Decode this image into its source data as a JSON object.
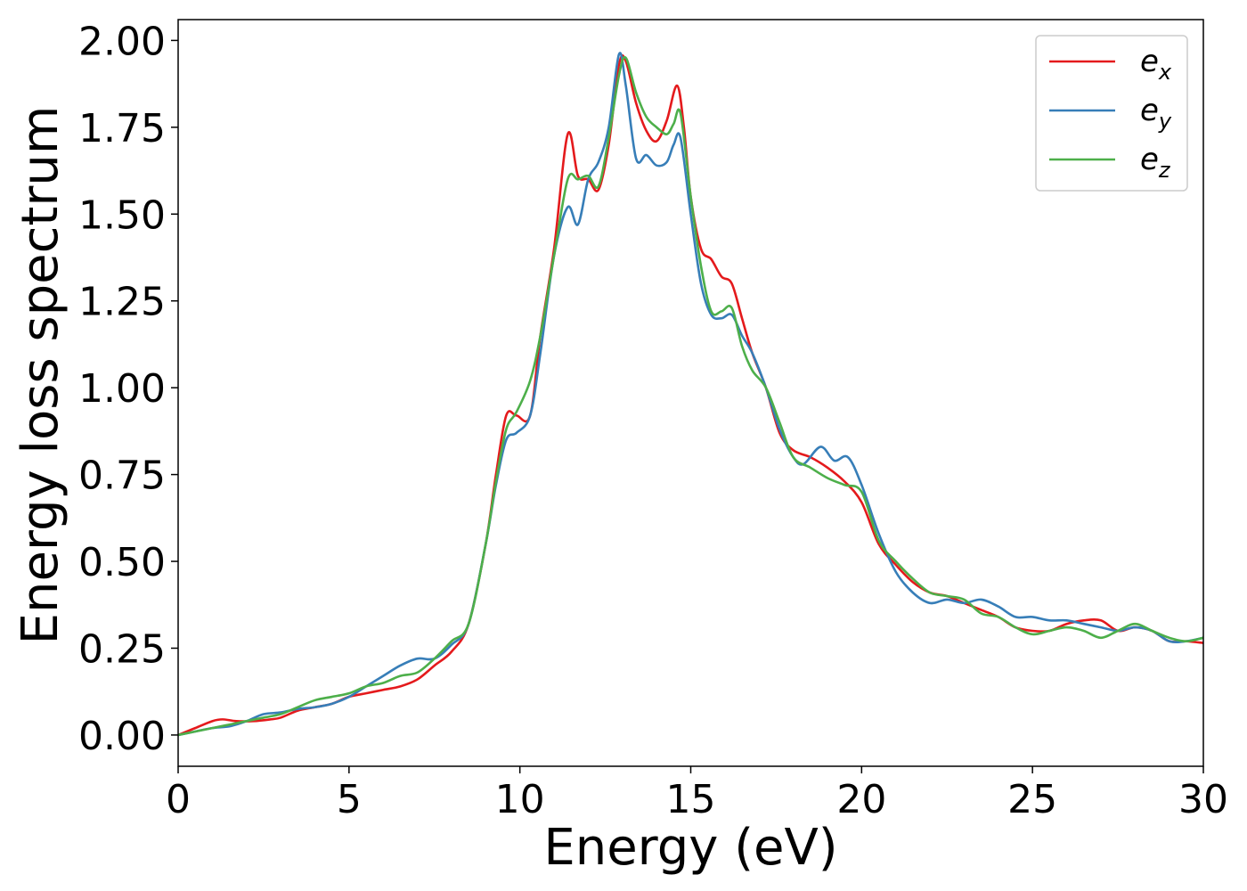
{
  "chart_data": {
    "type": "line",
    "title": "",
    "xlabel": "Energy (eV)",
    "ylabel": "Energy loss spectrum",
    "xlim": [
      0,
      30
    ],
    "ylim": [
      -0.09,
      2.06
    ],
    "xticks": [
      0,
      5,
      10,
      15,
      20,
      25,
      30
    ],
    "xtick_labels": [
      "0",
      "5",
      "10",
      "15",
      "20",
      "25",
      "30"
    ],
    "yticks": [
      0.0,
      0.25,
      0.5,
      0.75,
      1.0,
      1.25,
      1.5,
      1.75,
      2.0
    ],
    "ytick_labels": [
      "0.00",
      "0.25",
      "0.50",
      "0.75",
      "1.00",
      "1.25",
      "1.50",
      "1.75",
      "2.00"
    ],
    "grid": false,
    "legend_position": "top-right",
    "series": [
      {
        "name": "e_x",
        "legend_base": "e",
        "legend_sub": "x",
        "color": "#e41a1c",
        "x": [
          0,
          0.5,
          1.0,
          1.3,
          1.7,
          2.2,
          2.7,
          3.0,
          3.5,
          4.0,
          4.5,
          5.0,
          5.5,
          6.0,
          6.5,
          7.0,
          7.5,
          8.0,
          8.5,
          9.0,
          9.3,
          9.6,
          9.9,
          10.3,
          10.6,
          11.0,
          11.4,
          11.7,
          12.0,
          12.3,
          12.6,
          12.9,
          13.1,
          13.4,
          13.7,
          14.0,
          14.3,
          14.6,
          14.8,
          15.0,
          15.3,
          15.6,
          15.9,
          16.2,
          16.5,
          16.8,
          17.2,
          17.6,
          18.0,
          18.5,
          19.0,
          19.5,
          20.0,
          20.5,
          21.0,
          21.5,
          22.0,
          22.5,
          23.0,
          23.5,
          24.0,
          24.5,
          25.0,
          25.5,
          26.0,
          26.5,
          27.0,
          27.5,
          28.0,
          28.5,
          29.0,
          29.5,
          30.0
        ],
        "y": [
          0.0,
          0.02,
          0.04,
          0.045,
          0.04,
          0.04,
          0.045,
          0.05,
          0.07,
          0.08,
          0.09,
          0.11,
          0.12,
          0.13,
          0.14,
          0.16,
          0.2,
          0.24,
          0.32,
          0.55,
          0.75,
          0.92,
          0.92,
          0.92,
          1.15,
          1.4,
          1.73,
          1.61,
          1.6,
          1.57,
          1.7,
          1.93,
          1.94,
          1.82,
          1.74,
          1.71,
          1.77,
          1.87,
          1.75,
          1.55,
          1.4,
          1.37,
          1.32,
          1.3,
          1.2,
          1.1,
          1.0,
          0.87,
          0.82,
          0.8,
          0.77,
          0.73,
          0.67,
          0.55,
          0.49,
          0.44,
          0.41,
          0.4,
          0.38,
          0.36,
          0.34,
          0.31,
          0.3,
          0.3,
          0.32,
          0.33,
          0.33,
          0.3,
          0.31,
          0.3,
          0.27,
          0.27,
          0.265
        ]
      },
      {
        "name": "e_y",
        "legend_base": "e",
        "legend_sub": "y",
        "color": "#377eb8",
        "x": [
          0,
          0.5,
          1.0,
          1.5,
          2.0,
          2.5,
          3.0,
          3.5,
          4.0,
          4.5,
          5.0,
          5.5,
          6.0,
          6.5,
          7.0,
          7.5,
          8.0,
          8.5,
          9.0,
          9.3,
          9.6,
          9.9,
          10.3,
          10.6,
          11.0,
          11.4,
          11.7,
          12.0,
          12.3,
          12.6,
          12.9,
          13.1,
          13.4,
          13.7,
          14.0,
          14.3,
          14.5,
          14.7,
          15.0,
          15.3,
          15.6,
          15.9,
          16.2,
          16.5,
          16.8,
          17.2,
          17.6,
          18.0,
          18.3,
          18.8,
          19.2,
          19.6,
          20.0,
          20.5,
          21.0,
          21.5,
          22.0,
          22.5,
          23.0,
          23.5,
          24.0,
          24.5,
          25.0,
          25.5,
          26.0,
          26.5,
          27.0,
          27.5,
          28.0,
          28.5,
          29.0,
          29.5,
          30.0
        ],
        "y": [
          0.0,
          0.01,
          0.02,
          0.025,
          0.04,
          0.06,
          0.065,
          0.075,
          0.08,
          0.09,
          0.11,
          0.14,
          0.17,
          0.2,
          0.22,
          0.22,
          0.26,
          0.32,
          0.55,
          0.72,
          0.85,
          0.87,
          0.92,
          1.1,
          1.38,
          1.52,
          1.47,
          1.6,
          1.65,
          1.75,
          1.96,
          1.87,
          1.66,
          1.67,
          1.64,
          1.65,
          1.7,
          1.72,
          1.5,
          1.3,
          1.21,
          1.2,
          1.21,
          1.15,
          1.1,
          1.0,
          0.88,
          0.8,
          0.78,
          0.83,
          0.79,
          0.8,
          0.72,
          0.58,
          0.47,
          0.41,
          0.38,
          0.39,
          0.38,
          0.39,
          0.37,
          0.34,
          0.34,
          0.33,
          0.33,
          0.32,
          0.31,
          0.3,
          0.31,
          0.3,
          0.27,
          0.27,
          0.28
        ]
      },
      {
        "name": "e_z",
        "legend_base": "e",
        "legend_sub": "z",
        "color": "#4daf4a",
        "x": [
          0,
          0.5,
          1.0,
          1.5,
          2.0,
          2.5,
          3.0,
          3.5,
          4.0,
          4.5,
          5.0,
          5.5,
          6.0,
          6.5,
          7.0,
          7.5,
          8.0,
          8.5,
          9.0,
          9.3,
          9.6,
          9.9,
          10.3,
          10.6,
          11.0,
          11.4,
          11.7,
          12.0,
          12.3,
          12.6,
          12.9,
          13.1,
          13.4,
          13.7,
          14.0,
          14.3,
          14.5,
          14.7,
          15.0,
          15.3,
          15.6,
          15.9,
          16.2,
          16.5,
          16.8,
          17.2,
          17.6,
          18.0,
          18.5,
          19.0,
          19.5,
          20.0,
          20.5,
          21.0,
          21.5,
          22.0,
          22.5,
          23.0,
          23.5,
          24.0,
          24.5,
          25.0,
          25.5,
          26.0,
          26.5,
          27.0,
          27.5,
          28.0,
          28.5,
          29.0,
          29.5,
          30.0
        ],
        "y": [
          0.0,
          0.01,
          0.02,
          0.03,
          0.04,
          0.05,
          0.06,
          0.08,
          0.1,
          0.11,
          0.12,
          0.14,
          0.15,
          0.17,
          0.18,
          0.22,
          0.27,
          0.32,
          0.55,
          0.73,
          0.88,
          0.93,
          1.02,
          1.15,
          1.38,
          1.6,
          1.6,
          1.61,
          1.58,
          1.72,
          1.9,
          1.95,
          1.85,
          1.78,
          1.75,
          1.73,
          1.76,
          1.79,
          1.55,
          1.35,
          1.22,
          1.22,
          1.23,
          1.12,
          1.05,
          1.0,
          0.9,
          0.8,
          0.77,
          0.74,
          0.72,
          0.7,
          0.56,
          0.5,
          0.45,
          0.41,
          0.4,
          0.39,
          0.35,
          0.34,
          0.31,
          0.29,
          0.3,
          0.31,
          0.3,
          0.28,
          0.3,
          0.32,
          0.3,
          0.28,
          0.27,
          0.28
        ]
      }
    ]
  }
}
